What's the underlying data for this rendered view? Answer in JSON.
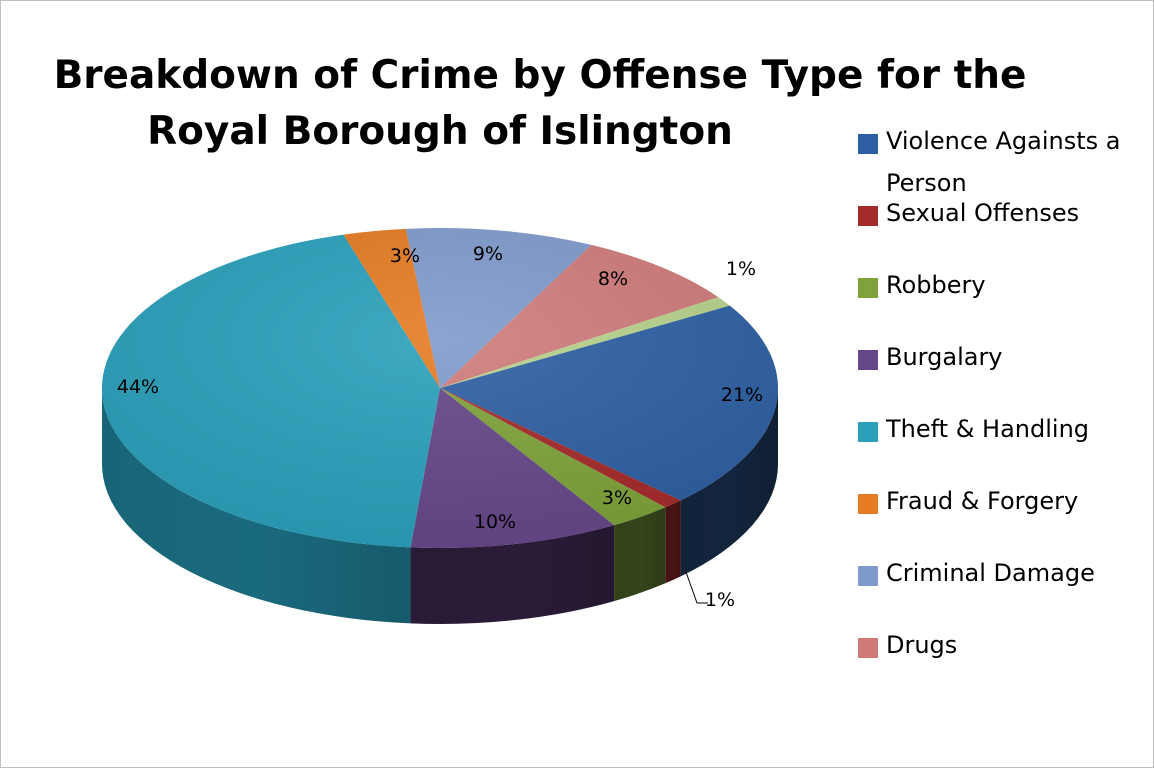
{
  "chart_data": {
    "type": "pie",
    "title_line1": "Breakdown of Crime by Offense Type for the",
    "title_line2": "Royal Borough of Islington",
    "legend_position": "right",
    "categories": [
      "Violence Againsts a Person",
      "Sexual Offenses",
      "Robbery",
      "Burgalary",
      "Theft & Handling",
      "Fraud & Forgery",
      "Criminal Damage",
      "Drugs",
      ""
    ],
    "values": [
      21,
      1,
      3,
      10,
      44,
      3,
      9,
      8,
      1
    ],
    "labels": [
      "21%",
      "1%",
      "3%",
      "10%",
      "44%",
      "3%",
      "9%",
      "8%",
      "1%"
    ],
    "colors": [
      "#2E5FA3",
      "#A52A2A",
      "#7FA33A",
      "#664789",
      "#2AA0BB",
      "#E57B22",
      "#7F9ACB",
      "#CF7B7A",
      "#B7D28B"
    ],
    "side_colors": [
      "#13253D",
      "#4A1314",
      "#35451A",
      "#2A1C38",
      "#1A6A7E",
      "#8A4710",
      "#3E4E6E",
      "#7A3E3E",
      "#6A7A4E"
    ]
  }
}
